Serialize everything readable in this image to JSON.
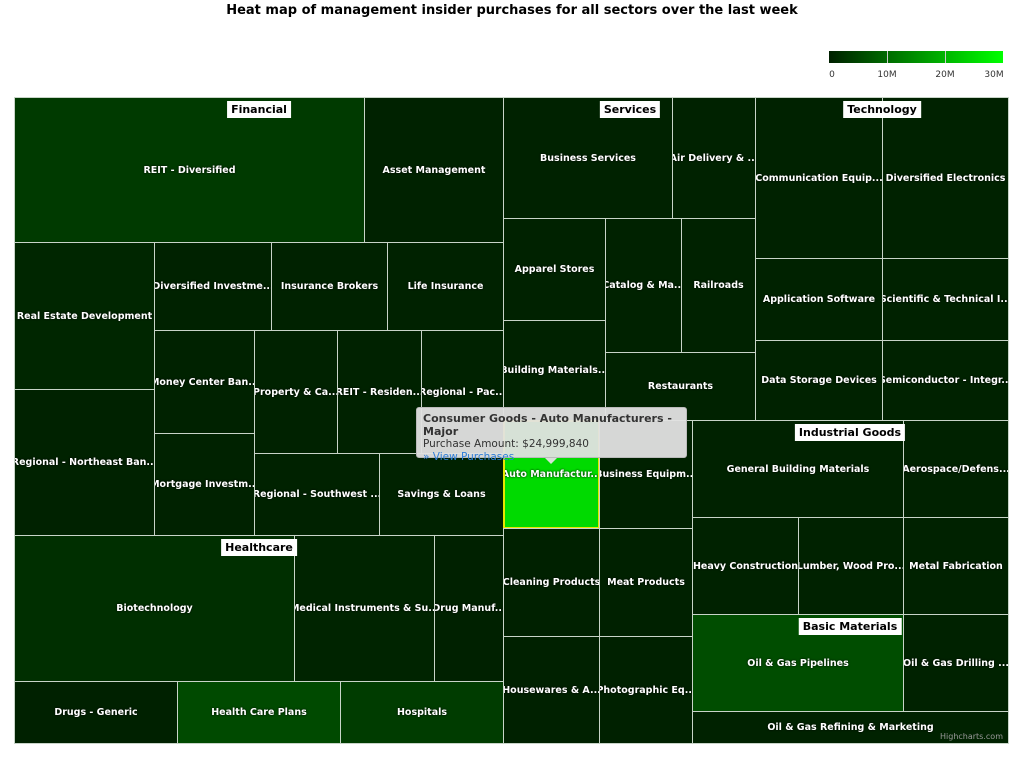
{
  "chart_data": {
    "type": "treemap",
    "title": "Heat map of management insider purchases for all sectors over the last week",
    "color_axis": {
      "min": 0,
      "max": 30000000,
      "min_color": "#002000",
      "max_color": "#00ff00",
      "tick_labels": [
        "0",
        "10M",
        "20M",
        "30M"
      ]
    },
    "sectors": [
      {
        "name": "Financial",
        "children": [
          {
            "label": "REIT - Diversified",
            "value": 3500000
          },
          {
            "label": "Asset Management",
            "value": 300000
          },
          {
            "label": "Real Estate Development",
            "value": 800000
          },
          {
            "label": "Regional - Northeast Ban...",
            "value": 300000
          },
          {
            "label": "Diversified Investme...",
            "value": 300000
          },
          {
            "label": "Insurance Brokers",
            "value": 300000
          },
          {
            "label": "Life Insurance",
            "value": 300000
          },
          {
            "label": "Money Center Ban...",
            "value": 300000
          },
          {
            "label": "Mortgage Investm...",
            "value": 300000
          },
          {
            "label": "Property & Ca...",
            "value": 300000
          },
          {
            "label": "REIT - Residen...",
            "value": 300000
          },
          {
            "label": "Regional - Pac...",
            "value": 300000
          },
          {
            "label": "Regional - Southwest ...",
            "value": 300000
          },
          {
            "label": "Savings & Loans",
            "value": 300000
          }
        ]
      },
      {
        "name": "Healthcare",
        "children": [
          {
            "label": "Biotechnology",
            "value": 2000000
          },
          {
            "label": "Medical Instruments & Su...",
            "value": 500000
          },
          {
            "label": "Drug Manuf...",
            "value": 200000
          },
          {
            "label": "Drugs - Generic",
            "value": 200000
          },
          {
            "label": "Health Care Plans",
            "value": 5600000
          },
          {
            "label": "Hospitals",
            "value": 3800000
          }
        ]
      },
      {
        "name": "Services",
        "children": [
          {
            "label": "Business Services",
            "value": 300000
          },
          {
            "label": "Air Delivery & ...",
            "value": 300000
          },
          {
            "label": "Apparel Stores",
            "value": 300000
          },
          {
            "label": "Catalog & Ma...",
            "value": 300000
          },
          {
            "label": "Railroads",
            "value": 300000
          },
          {
            "label": "Building Materials...",
            "value": 300000
          },
          {
            "label": "Restaurants",
            "value": 300000
          }
        ]
      },
      {
        "name": "Consumer Goods",
        "children": [
          {
            "label": "Auto Manufactur...",
            "value": 24999840
          },
          {
            "label": "Business Equipm...",
            "value": 200000
          },
          {
            "label": "Cleaning Products",
            "value": 200000
          },
          {
            "label": "Meat Products",
            "value": 200000
          },
          {
            "label": "Housewares & A...",
            "value": 200000
          },
          {
            "label": "Photographic Eq...",
            "value": 200000
          }
        ]
      },
      {
        "name": "Technology",
        "children": [
          {
            "label": "Communication Equip...",
            "value": 300000
          },
          {
            "label": "Diversified Electronics",
            "value": 300000
          },
          {
            "label": "Application Software",
            "value": 300000
          },
          {
            "label": "Scientific & Technical I...",
            "value": 300000
          },
          {
            "label": "Data Storage Devices",
            "value": 300000
          },
          {
            "label": "Semiconductor - Integr...",
            "value": 300000
          }
        ]
      },
      {
        "name": "Industrial Goods",
        "children": [
          {
            "label": "General Building Materials",
            "value": 300000
          },
          {
            "label": "Aerospace/Defens...",
            "value": 300000
          },
          {
            "label": "Heavy Construction",
            "value": 300000
          },
          {
            "label": "Lumber, Wood Pro...",
            "value": 300000
          },
          {
            "label": "Metal Fabrication",
            "value": 300000
          }
        ]
      },
      {
        "name": "Basic Materials",
        "children": [
          {
            "label": "Oil & Gas Pipelines",
            "value": 6000000
          },
          {
            "label": "Oil & Gas Drilling ...",
            "value": 300000
          },
          {
            "label": "Oil & Gas Refining & Marketing",
            "value": 300000
          }
        ]
      }
    ],
    "tooltip": {
      "title": "Consumer Goods - Auto Manufacturers - Major",
      "line": "Purchase Amount: $24,999,840",
      "link": "» View Purchases"
    },
    "credits": "Highcharts.com"
  }
}
